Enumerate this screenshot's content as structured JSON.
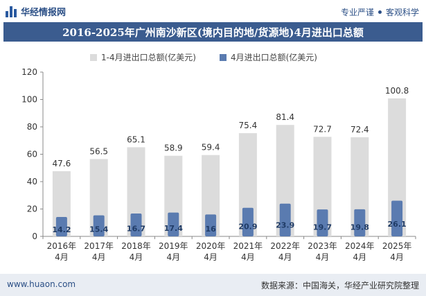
{
  "header": {
    "logo_text": "华经情报网",
    "tagline_left": "专业严谨",
    "tagline_right": "客观科学"
  },
  "footer": {
    "website": "www.huaon.com",
    "source": "数据来源：中国海关，华经产业研究院整理"
  },
  "colors": {
    "total_bar": "#dcdcdc",
    "april_bar": "#5a7bb0",
    "title_bg": "#3b5c8f"
  },
  "chart_data": {
    "type": "bar",
    "title": "2016-2025年广州南沙新区(境内目的地/货源地)4月进出口总额",
    "categories": [
      "2016年\n4月",
      "2017年\n4月",
      "2018年\n4月",
      "2019年\n4月",
      "2020年\n4月",
      "2021年\n4月",
      "2022年\n4月",
      "2023年\n4月",
      "2024年\n4月",
      "2025年\n4月"
    ],
    "series": [
      {
        "name": "1-4月进出口总额(亿美元)",
        "values": [
          47.6,
          56.5,
          65.1,
          58.9,
          59.4,
          75.4,
          81.4,
          72.7,
          72.4,
          100.8
        ]
      },
      {
        "name": "4月进出口总额(亿美元)",
        "values": [
          14.2,
          15.4,
          16.7,
          17.4,
          16,
          20.9,
          23.9,
          19.7,
          19.8,
          26.1
        ]
      }
    ],
    "ylim": [
      0,
      120
    ],
    "yticks": [
      0,
      20,
      40,
      60,
      80,
      100,
      120
    ],
    "grid": false,
    "legend_position": "top"
  }
}
